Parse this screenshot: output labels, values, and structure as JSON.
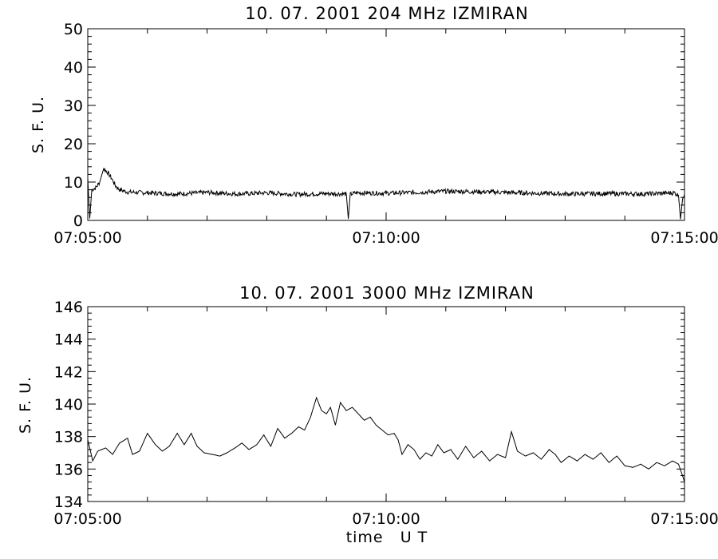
{
  "chart_data": [
    {
      "type": "line",
      "title": "10.  07.  2001    204  MHz    IZMIRAN",
      "ylabel": "S. F. U.",
      "xlabel": "",
      "ylim": [
        0,
        50
      ],
      "yticks": [
        "0",
        "10",
        "20",
        "30",
        "40",
        "50"
      ],
      "xlim": [
        "07:05:00",
        "07:15:00"
      ],
      "xticks": [
        "07:05:00",
        "07:10:00",
        "07:15:00"
      ],
      "grid": false,
      "series": [
        {
          "values": [
            [
              0,
              11
            ],
            [
              2,
              0.5
            ],
            [
              4,
              8
            ],
            [
              8,
              8.5
            ],
            [
              12,
              10
            ],
            [
              16,
              13.5
            ],
            [
              20,
              12.5
            ],
            [
              24,
              11
            ],
            [
              28,
              9
            ],
            [
              32,
              8
            ],
            [
              40,
              7.4
            ],
            [
              60,
              7.2
            ],
            [
              90,
              6.9
            ],
            [
              120,
              7.3
            ],
            [
              150,
              6.9
            ],
            [
              180,
              7.2
            ],
            [
              210,
              6.8
            ],
            [
              240,
              7.0
            ],
            [
              260,
              6.9
            ],
            [
              262,
              0.4
            ],
            [
              264,
              6.8
            ],
            [
              270,
              7.2
            ],
            [
              300,
              7.1
            ],
            [
              330,
              7.3
            ],
            [
              360,
              7.6
            ],
            [
              390,
              7.5
            ],
            [
              420,
              7.3
            ],
            [
              450,
              7.1
            ],
            [
              480,
              6.9
            ],
            [
              520,
              7.0
            ],
            [
              560,
              6.9
            ],
            [
              590,
              7.2
            ],
            [
              594,
              6.5
            ],
            [
              596,
              0.3
            ],
            [
              598,
              6.0
            ],
            [
              600,
              6.8
            ]
          ]
        }
      ]
    },
    {
      "type": "line",
      "title": "10.  07.  2001    3000  MHz    IZMIRAN",
      "ylabel": "S. F. U.",
      "xlabel": "time   U T",
      "ylim": [
        134,
        146
      ],
      "yticks": [
        "134",
        "136",
        "138",
        "140",
        "142",
        "144",
        "146"
      ],
      "xlim": [
        "07:05:00",
        "07:15:00"
      ],
      "xticks": [
        "07:05:00",
        "07:10:00",
        "07:15:00"
      ],
      "grid": false,
      "series": [
        {
          "values": [
            [
              0,
              137.8
            ],
            [
              5,
              136.5
            ],
            [
              10,
              137.1
            ],
            [
              18,
              137.3
            ],
            [
              25,
              136.9
            ],
            [
              32,
              137.6
            ],
            [
              40,
              137.9
            ],
            [
              45,
              136.9
            ],
            [
              52,
              137.1
            ],
            [
              60,
              138.2
            ],
            [
              68,
              137.5
            ],
            [
              75,
              137.1
            ],
            [
              82,
              137.4
            ],
            [
              90,
              138.2
            ],
            [
              97,
              137.5
            ],
            [
              104,
              138.2
            ],
            [
              110,
              137.4
            ],
            [
              117,
              137.0
            ],
            [
              125,
              136.9
            ],
            [
              133,
              136.8
            ],
            [
              140,
              137.0
            ],
            [
              148,
              137.3
            ],
            [
              155,
              137.6
            ],
            [
              162,
              137.2
            ],
            [
              170,
              137.5
            ],
            [
              177,
              138.1
            ],
            [
              184,
              137.4
            ],
            [
              191,
              138.5
            ],
            [
              198,
              137.9
            ],
            [
              205,
              138.2
            ],
            [
              212,
              138.6
            ],
            [
              218,
              138.4
            ],
            [
              224,
              139.2
            ],
            [
              230,
              140.4
            ],
            [
              235,
              139.6
            ],
            [
              240,
              139.4
            ],
            [
              244,
              139.8
            ],
            [
              249,
              138.7
            ],
            [
              254,
              140.1
            ],
            [
              260,
              139.6
            ],
            [
              266,
              139.8
            ],
            [
              272,
              139.4
            ],
            [
              278,
              139.0
            ],
            [
              284,
              139.2
            ],
            [
              290,
              138.7
            ],
            [
              296,
              138.4
            ],
            [
              302,
              138.1
            ],
            [
              308,
              138.2
            ],
            [
              312,
              137.8
            ],
            [
              316,
              136.9
            ],
            [
              322,
              137.5
            ],
            [
              328,
              137.2
            ],
            [
              334,
              136.6
            ],
            [
              340,
              137.0
            ],
            [
              346,
              136.8
            ],
            [
              352,
              137.5
            ],
            [
              358,
              137.0
            ],
            [
              365,
              137.2
            ],
            [
              372,
              136.6
            ],
            [
              380,
              137.4
            ],
            [
              388,
              136.7
            ],
            [
              396,
              137.1
            ],
            [
              404,
              136.5
            ],
            [
              412,
              136.9
            ],
            [
              420,
              136.7
            ],
            [
              426,
              138.3
            ],
            [
              432,
              137.1
            ],
            [
              440,
              136.8
            ],
            [
              448,
              137.0
            ],
            [
              456,
              136.6
            ],
            [
              464,
              137.2
            ],
            [
              470,
              136.9
            ],
            [
              476,
              136.4
            ],
            [
              484,
              136.8
            ],
            [
              492,
              136.5
            ],
            [
              500,
              136.9
            ],
            [
              508,
              136.6
            ],
            [
              516,
              137.0
            ],
            [
              524,
              136.4
            ],
            [
              532,
              136.8
            ],
            [
              540,
              136.2
            ],
            [
              548,
              136.1
            ],
            [
              556,
              136.3
            ],
            [
              564,
              136.0
            ],
            [
              572,
              136.4
            ],
            [
              580,
              136.2
            ],
            [
              588,
              136.5
            ],
            [
              594,
              136.3
            ],
            [
              598,
              135.6
            ],
            [
              600,
              135.2
            ]
          ]
        }
      ]
    }
  ]
}
